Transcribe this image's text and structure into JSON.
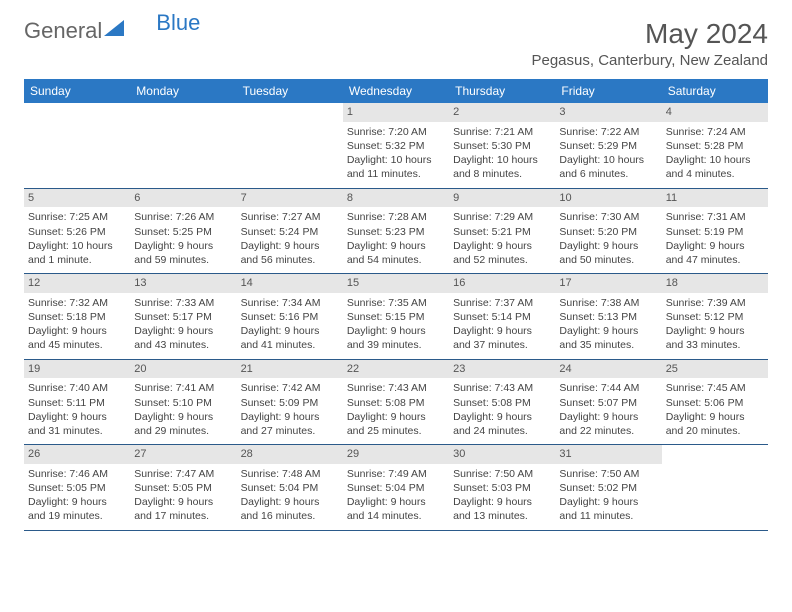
{
  "logo": {
    "text_general": "General",
    "text_blue": "Blue"
  },
  "header": {
    "month_title": "May 2024",
    "location": "Pegasus, Canterbury, New Zealand"
  },
  "colors": {
    "header_bg": "#2b78c4",
    "header_text": "#ffffff",
    "daynum_bg": "#e6e6e6",
    "border": "#2b5a8a",
    "text": "#444444"
  },
  "day_names": [
    "Sunday",
    "Monday",
    "Tuesday",
    "Wednesday",
    "Thursday",
    "Friday",
    "Saturday"
  ],
  "weeks": [
    [
      {
        "empty": true
      },
      {
        "empty": true
      },
      {
        "empty": true
      },
      {
        "n": "1",
        "sunrise": "Sunrise: 7:20 AM",
        "sunset": "Sunset: 5:32 PM",
        "daylight": "Daylight: 10 hours and 11 minutes."
      },
      {
        "n": "2",
        "sunrise": "Sunrise: 7:21 AM",
        "sunset": "Sunset: 5:30 PM",
        "daylight": "Daylight: 10 hours and 8 minutes."
      },
      {
        "n": "3",
        "sunrise": "Sunrise: 7:22 AM",
        "sunset": "Sunset: 5:29 PM",
        "daylight": "Daylight: 10 hours and 6 minutes."
      },
      {
        "n": "4",
        "sunrise": "Sunrise: 7:24 AM",
        "sunset": "Sunset: 5:28 PM",
        "daylight": "Daylight: 10 hours and 4 minutes."
      }
    ],
    [
      {
        "n": "5",
        "sunrise": "Sunrise: 7:25 AM",
        "sunset": "Sunset: 5:26 PM",
        "daylight": "Daylight: 10 hours and 1 minute."
      },
      {
        "n": "6",
        "sunrise": "Sunrise: 7:26 AM",
        "sunset": "Sunset: 5:25 PM",
        "daylight": "Daylight: 9 hours and 59 minutes."
      },
      {
        "n": "7",
        "sunrise": "Sunrise: 7:27 AM",
        "sunset": "Sunset: 5:24 PM",
        "daylight": "Daylight: 9 hours and 56 minutes."
      },
      {
        "n": "8",
        "sunrise": "Sunrise: 7:28 AM",
        "sunset": "Sunset: 5:23 PM",
        "daylight": "Daylight: 9 hours and 54 minutes."
      },
      {
        "n": "9",
        "sunrise": "Sunrise: 7:29 AM",
        "sunset": "Sunset: 5:21 PM",
        "daylight": "Daylight: 9 hours and 52 minutes."
      },
      {
        "n": "10",
        "sunrise": "Sunrise: 7:30 AM",
        "sunset": "Sunset: 5:20 PM",
        "daylight": "Daylight: 9 hours and 50 minutes."
      },
      {
        "n": "11",
        "sunrise": "Sunrise: 7:31 AM",
        "sunset": "Sunset: 5:19 PM",
        "daylight": "Daylight: 9 hours and 47 minutes."
      }
    ],
    [
      {
        "n": "12",
        "sunrise": "Sunrise: 7:32 AM",
        "sunset": "Sunset: 5:18 PM",
        "daylight": "Daylight: 9 hours and 45 minutes."
      },
      {
        "n": "13",
        "sunrise": "Sunrise: 7:33 AM",
        "sunset": "Sunset: 5:17 PM",
        "daylight": "Daylight: 9 hours and 43 minutes."
      },
      {
        "n": "14",
        "sunrise": "Sunrise: 7:34 AM",
        "sunset": "Sunset: 5:16 PM",
        "daylight": "Daylight: 9 hours and 41 minutes."
      },
      {
        "n": "15",
        "sunrise": "Sunrise: 7:35 AM",
        "sunset": "Sunset: 5:15 PM",
        "daylight": "Daylight: 9 hours and 39 minutes."
      },
      {
        "n": "16",
        "sunrise": "Sunrise: 7:37 AM",
        "sunset": "Sunset: 5:14 PM",
        "daylight": "Daylight: 9 hours and 37 minutes."
      },
      {
        "n": "17",
        "sunrise": "Sunrise: 7:38 AM",
        "sunset": "Sunset: 5:13 PM",
        "daylight": "Daylight: 9 hours and 35 minutes."
      },
      {
        "n": "18",
        "sunrise": "Sunrise: 7:39 AM",
        "sunset": "Sunset: 5:12 PM",
        "daylight": "Daylight: 9 hours and 33 minutes."
      }
    ],
    [
      {
        "n": "19",
        "sunrise": "Sunrise: 7:40 AM",
        "sunset": "Sunset: 5:11 PM",
        "daylight": "Daylight: 9 hours and 31 minutes."
      },
      {
        "n": "20",
        "sunrise": "Sunrise: 7:41 AM",
        "sunset": "Sunset: 5:10 PM",
        "daylight": "Daylight: 9 hours and 29 minutes."
      },
      {
        "n": "21",
        "sunrise": "Sunrise: 7:42 AM",
        "sunset": "Sunset: 5:09 PM",
        "daylight": "Daylight: 9 hours and 27 minutes."
      },
      {
        "n": "22",
        "sunrise": "Sunrise: 7:43 AM",
        "sunset": "Sunset: 5:08 PM",
        "daylight": "Daylight: 9 hours and 25 minutes."
      },
      {
        "n": "23",
        "sunrise": "Sunrise: 7:43 AM",
        "sunset": "Sunset: 5:08 PM",
        "daylight": "Daylight: 9 hours and 24 minutes."
      },
      {
        "n": "24",
        "sunrise": "Sunrise: 7:44 AM",
        "sunset": "Sunset: 5:07 PM",
        "daylight": "Daylight: 9 hours and 22 minutes."
      },
      {
        "n": "25",
        "sunrise": "Sunrise: 7:45 AM",
        "sunset": "Sunset: 5:06 PM",
        "daylight": "Daylight: 9 hours and 20 minutes."
      }
    ],
    [
      {
        "n": "26",
        "sunrise": "Sunrise: 7:46 AM",
        "sunset": "Sunset: 5:05 PM",
        "daylight": "Daylight: 9 hours and 19 minutes."
      },
      {
        "n": "27",
        "sunrise": "Sunrise: 7:47 AM",
        "sunset": "Sunset: 5:05 PM",
        "daylight": "Daylight: 9 hours and 17 minutes."
      },
      {
        "n": "28",
        "sunrise": "Sunrise: 7:48 AM",
        "sunset": "Sunset: 5:04 PM",
        "daylight": "Daylight: 9 hours and 16 minutes."
      },
      {
        "n": "29",
        "sunrise": "Sunrise: 7:49 AM",
        "sunset": "Sunset: 5:04 PM",
        "daylight": "Daylight: 9 hours and 14 minutes."
      },
      {
        "n": "30",
        "sunrise": "Sunrise: 7:50 AM",
        "sunset": "Sunset: 5:03 PM",
        "daylight": "Daylight: 9 hours and 13 minutes."
      },
      {
        "n": "31",
        "sunrise": "Sunrise: 7:50 AM",
        "sunset": "Sunset: 5:02 PM",
        "daylight": "Daylight: 9 hours and 11 minutes."
      },
      {
        "empty": true
      }
    ]
  ]
}
